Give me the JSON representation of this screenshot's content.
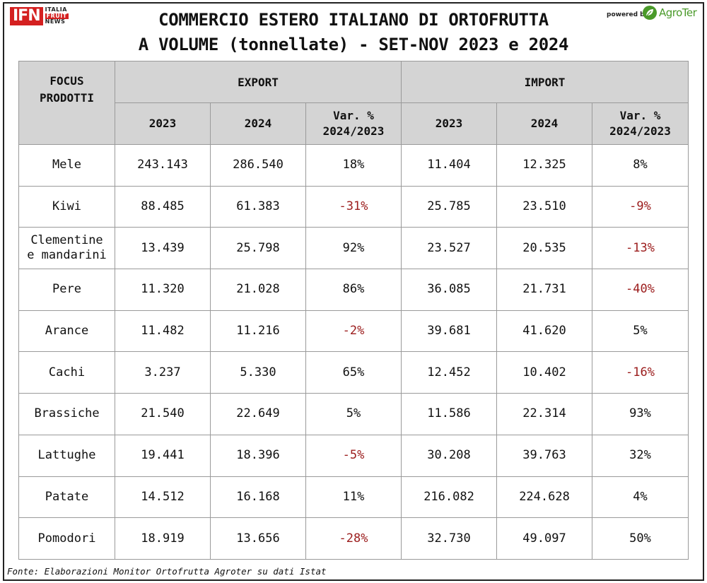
{
  "logo": {
    "ifn": "IFN",
    "line1": "ITALIA",
    "line2": "FRUIT",
    "line3": "NEWS"
  },
  "powered_by": "powered by",
  "agroter": "AgroTer",
  "title_line1": "COMMERCIO ESTERO ITALIANO DI ORTOFRUTTA",
  "title_line2": "A VOLUME (tonnellate) - SET-NOV 2023 e 2024",
  "header": {
    "corner": [
      "FOCUS",
      "PRODOTTI"
    ],
    "export": "EXPORT",
    "import": "IMPORT",
    "y2023": "2023",
    "y2024": "2024",
    "var_line1": "Var. %",
    "var_line2": "2024/2023"
  },
  "colors": {
    "negative": "#9b1c1c",
    "header_bg": "#d4d4d4",
    "brand_red": "#d42020",
    "agroter_green": "#4a9a2a"
  },
  "chart_data": {
    "type": "table",
    "title": "COMMERCIO ESTERO ITALIANO DI ORTOFRUTTA A VOLUME (tonnellate) - SET-NOV 2023 e 2024",
    "columns": [
      "FOCUS PRODOTTI",
      "EXPORT 2023",
      "EXPORT 2024",
      "EXPORT Var. % 2024/2023",
      "IMPORT 2023",
      "IMPORT 2024",
      "IMPORT Var. % 2024/2023"
    ],
    "rows": [
      {
        "product": [
          "Mele"
        ],
        "exp_2023": "243.143",
        "exp_2024": "286.540",
        "exp_var": "18%",
        "imp_2023": "11.404",
        "imp_2024": "12.325",
        "imp_var": "8%"
      },
      {
        "product": [
          "Kiwi"
        ],
        "exp_2023": "88.485",
        "exp_2024": "61.383",
        "exp_var": "-31%",
        "imp_2023": "25.785",
        "imp_2024": "23.510",
        "imp_var": "-9%"
      },
      {
        "product": [
          "Clementine",
          "e mandarini"
        ],
        "exp_2023": "13.439",
        "exp_2024": "25.798",
        "exp_var": "92%",
        "imp_2023": "23.527",
        "imp_2024": "20.535",
        "imp_var": "-13%"
      },
      {
        "product": [
          "Pere"
        ],
        "exp_2023": "11.320",
        "exp_2024": "21.028",
        "exp_var": "86%",
        "imp_2023": "36.085",
        "imp_2024": "21.731",
        "imp_var": "-40%"
      },
      {
        "product": [
          "Arance"
        ],
        "exp_2023": "11.482",
        "exp_2024": "11.216",
        "exp_var": "-2%",
        "imp_2023": "39.681",
        "imp_2024": "41.620",
        "imp_var": "5%"
      },
      {
        "product": [
          "Cachi"
        ],
        "exp_2023": "3.237",
        "exp_2024": "5.330",
        "exp_var": "65%",
        "imp_2023": "12.452",
        "imp_2024": "10.402",
        "imp_var": "-16%"
      },
      {
        "product": [
          "Brassiche"
        ],
        "exp_2023": "21.540",
        "exp_2024": "22.649",
        "exp_var": "5%",
        "imp_2023": "11.586",
        "imp_2024": "22.314",
        "imp_var": "93%"
      },
      {
        "product": [
          "Lattughe"
        ],
        "exp_2023": "19.441",
        "exp_2024": "18.396",
        "exp_var": "-5%",
        "imp_2023": "30.208",
        "imp_2024": "39.763",
        "imp_var": "32%"
      },
      {
        "product": [
          "Patate"
        ],
        "exp_2023": "14.512",
        "exp_2024": "16.168",
        "exp_var": "11%",
        "imp_2023": "216.082",
        "imp_2024": "224.628",
        "imp_var": "4%"
      },
      {
        "product": [
          "Pomodori"
        ],
        "exp_2023": "18.919",
        "exp_2024": "13.656",
        "exp_var": "-28%",
        "imp_2023": "32.730",
        "imp_2024": "49.097",
        "imp_var": "50%"
      }
    ]
  },
  "source": "Fonte: Elaborazioni Monitor Ortofrutta Agroter su dati Istat"
}
